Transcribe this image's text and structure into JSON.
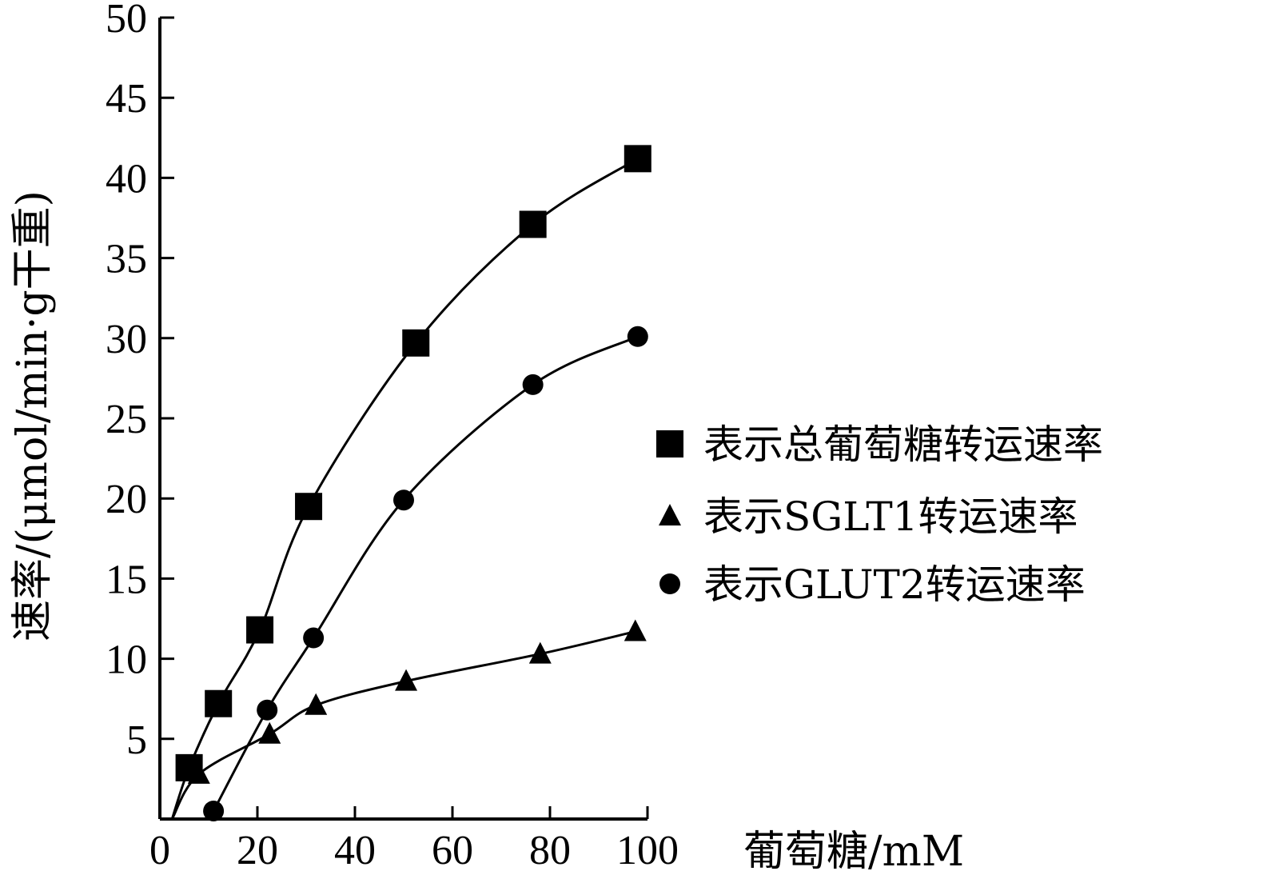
{
  "chart_data": {
    "type": "line",
    "title": "",
    "xlabel": "葡萄糖/mM",
    "ylabel": "速率/(μmol/min·g干重)",
    "xlim": [
      0,
      100
    ],
    "ylim": [
      0,
      50
    ],
    "xticks": [
      0,
      20,
      40,
      60,
      80,
      100
    ],
    "xtick_labels": [
      "0",
      "20",
      "40",
      "60",
      "80",
      "100"
    ],
    "yticks": [
      5,
      10,
      15,
      20,
      25,
      30,
      35,
      40,
      45,
      50
    ],
    "ytick_labels": [
      "5",
      "10",
      "15",
      "20",
      "25",
      "30",
      "35",
      "40",
      "45",
      "50"
    ],
    "legend_position": "right",
    "series": [
      {
        "name": "表示总葡萄糖转运速率",
        "marker": "square",
        "color": "#000000",
        "x": [
          6,
          12,
          20.5,
          30.5,
          52.5,
          76.5,
          98
        ],
        "y": [
          3.2,
          7.2,
          11.8,
          19.5,
          29.7,
          37.1,
          41.2
        ]
      },
      {
        "name": "表示SGLT1转运速率",
        "marker": "triangle",
        "color": "#000000",
        "x": [
          8,
          22.5,
          32,
          50.5,
          78,
          97.5
        ],
        "y": [
          2.8,
          5.3,
          7.1,
          8.6,
          10.3,
          11.7
        ]
      },
      {
        "name": "表示GLUT2转运速率",
        "marker": "circle",
        "color": "#000000",
        "x": [
          11,
          22,
          31.5,
          50,
          76.5,
          98
        ],
        "y": [
          0.5,
          6.8,
          11.3,
          19.9,
          27.1,
          30.1
        ]
      }
    ]
  }
}
